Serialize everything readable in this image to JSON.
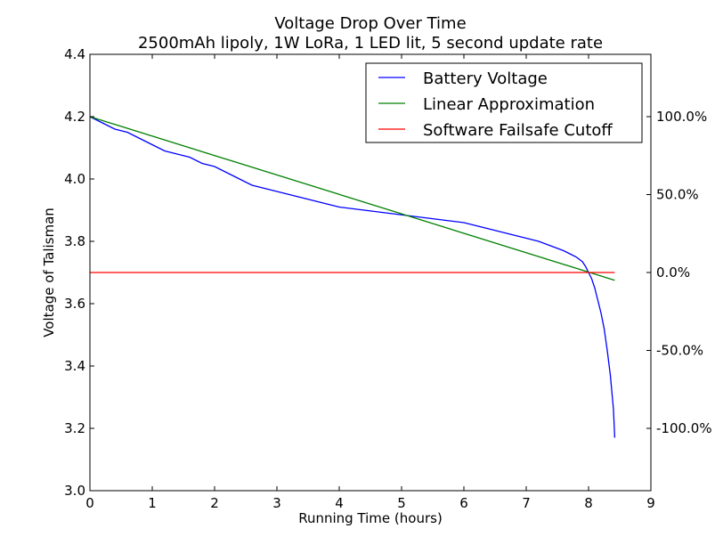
{
  "chart_data": {
    "type": "line",
    "title": "Voltage Drop Over Time",
    "subtitle": "2500mAh lipoly, 1W LoRa, 1 LED lit, 5 second update rate",
    "xlabel": "Running Time (hours)",
    "ylabel": "Voltage of Talisman",
    "xlim": [
      0,
      9
    ],
    "ylim": [
      3.0,
      4.4
    ],
    "xticks": [
      "0",
      "1",
      "2",
      "3",
      "4",
      "5",
      "6",
      "7",
      "8",
      "9"
    ],
    "yticks": [
      "3.0",
      "3.2",
      "3.4",
      "3.6",
      "3.8",
      "4.0",
      "4.2",
      "4.4"
    ],
    "y2ticks": [
      {
        "label": "100.0%",
        "value": 4.2
      },
      {
        "label": "50.0%",
        "value": 3.95
      },
      {
        "label": "0.0%",
        "value": 3.7
      },
      {
        "label": "-50.0%",
        "value": 3.45
      },
      {
        "label": "-100.0%",
        "value": 3.2
      }
    ],
    "grid": false,
    "legend_position": "top-right",
    "series": [
      {
        "name": "Battery Voltage",
        "color": "#0000ff",
        "x": [
          0,
          0.1,
          0.2,
          0.3,
          0.4,
          0.6,
          0.8,
          1.0,
          1.2,
          1.4,
          1.6,
          1.8,
          2.0,
          2.2,
          2.4,
          2.6,
          2.8,
          3.0,
          3.2,
          3.4,
          3.6,
          3.8,
          4.0,
          4.2,
          4.4,
          4.6,
          4.8,
          5.0,
          5.2,
          5.4,
          5.6,
          5.8,
          6.0,
          6.2,
          6.4,
          6.6,
          6.8,
          7.0,
          7.2,
          7.4,
          7.6,
          7.7,
          7.8,
          7.9,
          7.95,
          8.0,
          8.05,
          8.1,
          8.15,
          8.2,
          8.25,
          8.3,
          8.35,
          8.4,
          8.42
        ],
        "y": [
          4.2,
          4.19,
          4.18,
          4.17,
          4.16,
          4.15,
          4.13,
          4.11,
          4.09,
          4.08,
          4.07,
          4.05,
          4.04,
          4.02,
          4.0,
          3.98,
          3.97,
          3.96,
          3.95,
          3.94,
          3.93,
          3.92,
          3.91,
          3.905,
          3.9,
          3.895,
          3.89,
          3.885,
          3.88,
          3.875,
          3.87,
          3.865,
          3.86,
          3.85,
          3.84,
          3.83,
          3.82,
          3.81,
          3.8,
          3.785,
          3.77,
          3.76,
          3.75,
          3.735,
          3.72,
          3.7,
          3.68,
          3.65,
          3.61,
          3.57,
          3.52,
          3.45,
          3.37,
          3.26,
          3.17
        ]
      },
      {
        "name": "Linear Approximation",
        "color": "#008000",
        "x": [
          0,
          8.42
        ],
        "y": [
          4.2,
          3.675
        ]
      },
      {
        "name": "Software Failsafe Cutoff",
        "color": "#ff0000",
        "x": [
          0,
          8.42
        ],
        "y": [
          3.7,
          3.7
        ]
      }
    ]
  }
}
